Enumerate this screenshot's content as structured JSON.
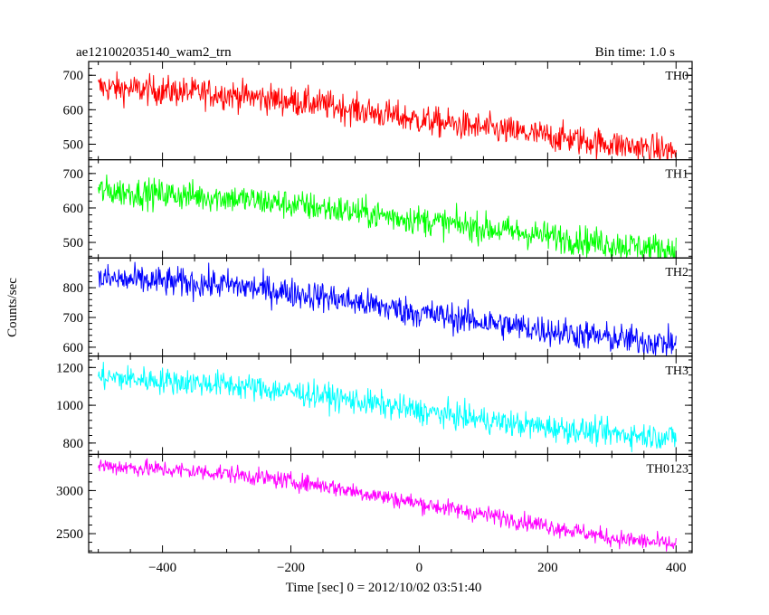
{
  "chart_data": {
    "type": "line",
    "title_left": "ae121002035140_wam2_trn",
    "title_right": "Bin time: 1.0 s",
    "xlabel": "Time [sec] 0 = 2012/10/02 03:51:40",
    "ylabel": "Counts/sec",
    "xlim": [
      -515,
      425
    ],
    "x_ticks": [
      -400,
      -200,
      0,
      200,
      400
    ],
    "x_range_data": [
      -500,
      400
    ],
    "bin": 1.0,
    "grid": false,
    "panels": [
      {
        "name": "TH0",
        "color": "#ff0000",
        "ylim": [
          455,
          740
        ],
        "y_ticks": [
          500,
          600,
          700
        ],
        "trend": [
          [
            -500,
            665
          ],
          [
            -300,
            645
          ],
          [
            -150,
            615
          ],
          [
            0,
            570
          ],
          [
            150,
            535
          ],
          [
            300,
            500
          ],
          [
            400,
            478
          ]
        ],
        "noise": 30
      },
      {
        "name": "TH1",
        "color": "#00ff00",
        "ylim": [
          455,
          740
        ],
        "y_ticks": [
          500,
          600,
          700
        ],
        "trend": [
          [
            -500,
            650
          ],
          [
            -300,
            630
          ],
          [
            -150,
            600
          ],
          [
            0,
            565
          ],
          [
            150,
            530
          ],
          [
            300,
            495
          ],
          [
            400,
            478
          ]
        ],
        "noise": 30
      },
      {
        "name": "TH2",
        "color": "#0000ff",
        "ylim": [
          570,
          900
        ],
        "y_ticks": [
          600,
          700,
          800
        ],
        "trend": [
          [
            -500,
            830
          ],
          [
            -300,
            810
          ],
          [
            -150,
            770
          ],
          [
            0,
            715
          ],
          [
            150,
            670
          ],
          [
            300,
            630
          ],
          [
            400,
            612
          ]
        ],
        "noise": 35
      },
      {
        "name": "TH3",
        "color": "#00ffff",
        "ylim": [
          740,
          1260
        ],
        "y_ticks": [
          800,
          1000,
          1200
        ],
        "trend": [
          [
            -500,
            1150
          ],
          [
            -300,
            1110
          ],
          [
            -150,
            1050
          ],
          [
            0,
            970
          ],
          [
            150,
            900
          ],
          [
            300,
            850
          ],
          [
            400,
            830
          ]
        ],
        "noise": 48
      },
      {
        "name": "TH0123",
        "color": "#ff00ff",
        "ylim": [
          2280,
          3420
        ],
        "y_ticks": [
          2500,
          3000
        ],
        "trend": [
          [
            -500,
            3290
          ],
          [
            -300,
            3200
          ],
          [
            -150,
            3060
          ],
          [
            0,
            2850
          ],
          [
            150,
            2660
          ],
          [
            300,
            2450
          ],
          [
            400,
            2370
          ]
        ],
        "noise": 70
      }
    ]
  }
}
